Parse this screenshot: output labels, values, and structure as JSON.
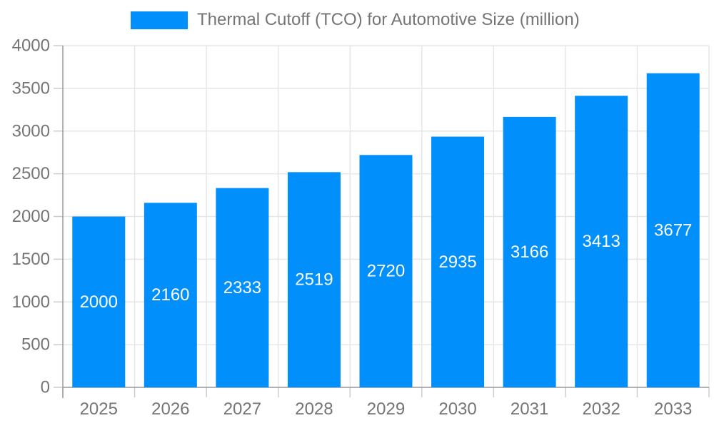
{
  "chart_data": {
    "type": "bar",
    "title": "Thermal Cutoff (TCO) for Automotive Size (million)",
    "series_name": "Thermal Cutoff (TCO) for Automotive Size (million)",
    "categories": [
      "2025",
      "2026",
      "2027",
      "2028",
      "2029",
      "2030",
      "2031",
      "2032",
      "2033"
    ],
    "values": [
      2000,
      2160,
      2333,
      2519,
      2720,
      2935,
      3166,
      3413,
      3677
    ],
    "xlabel": "",
    "ylabel": "",
    "ylim": [
      0,
      4000
    ],
    "ytick_step": 500,
    "ytick_labels": [
      "0",
      "500",
      "1000",
      "1500",
      "2000",
      "2500",
      "3000",
      "3500",
      "4000"
    ],
    "grid": true,
    "legend_position": "top",
    "bar_value_labels": "inside-center",
    "colors": {
      "bar": "#008FFB",
      "bar_label_text": "#FFFFFF",
      "axis_text": "#757575",
      "grid_line": "#E6E6E6",
      "tick_line": "#CCCCCC",
      "axis_line": "#999999",
      "background": "#FFFFFF"
    }
  }
}
